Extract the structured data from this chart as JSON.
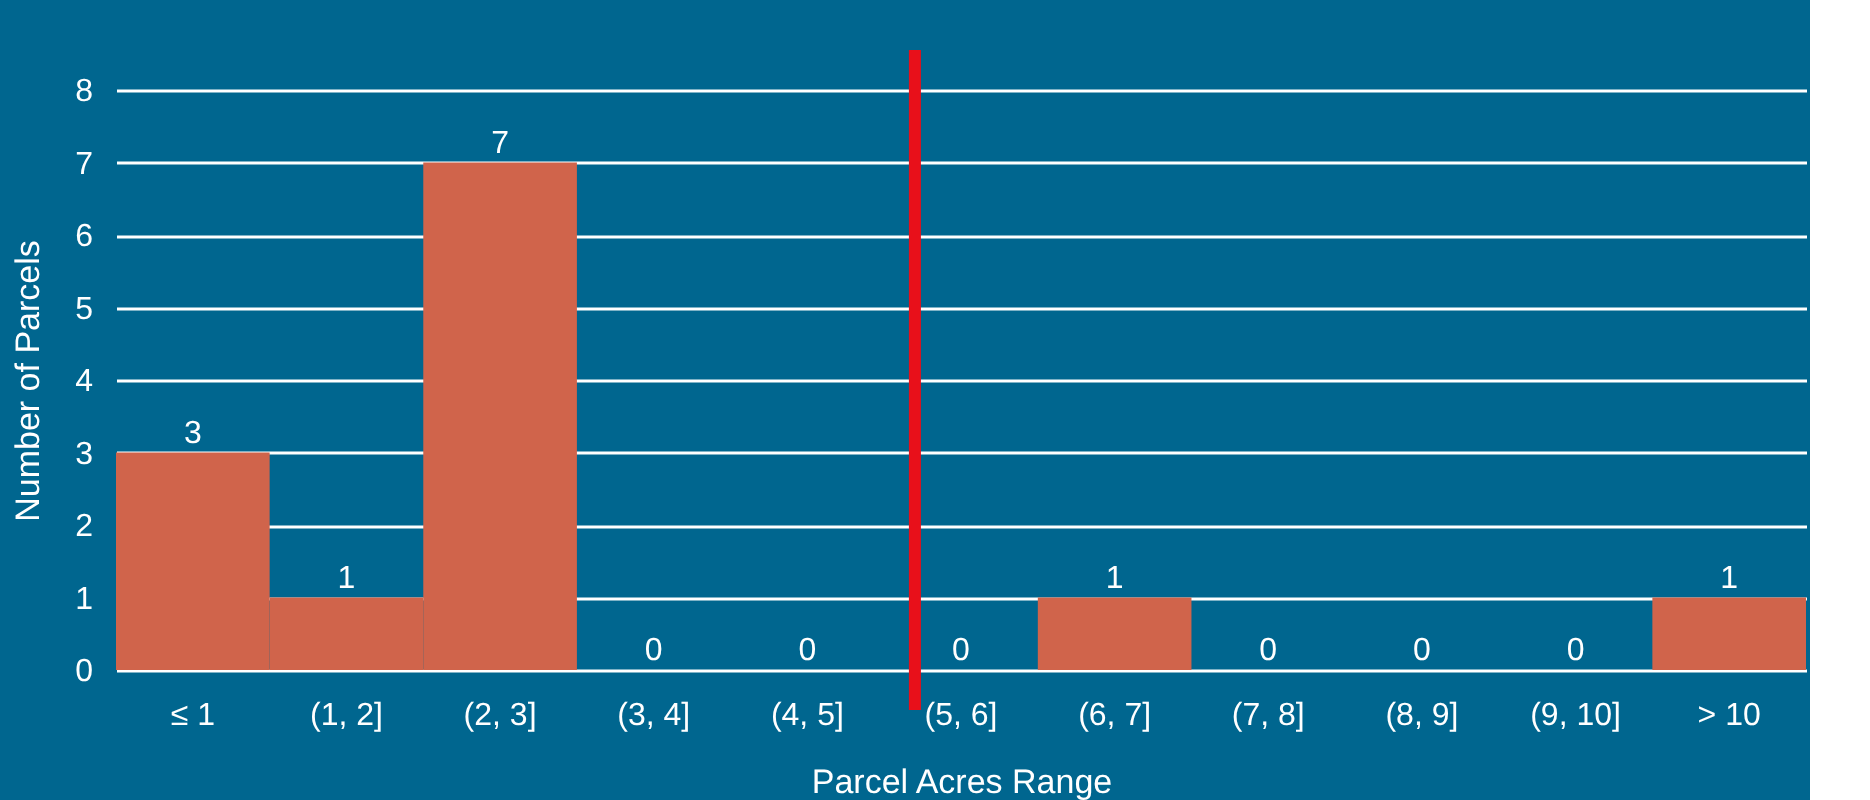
{
  "chart_data": {
    "type": "bar",
    "xlabel": "Parcel Acres Range",
    "ylabel": "Number of Parcels",
    "categories": [
      "≤ 1",
      "(1, 2]",
      "(2, 3]",
      "(3, 4]",
      "(4, 5]",
      "(5, 6]",
      "(6, 7]",
      "(7, 8]",
      "(8, 9]",
      "(9, 10]",
      "> 10"
    ],
    "values": [
      3,
      1,
      7,
      0,
      0,
      0,
      1,
      0,
      0,
      0,
      1
    ],
    "color": "#d0644b",
    "ylim": [
      0,
      8
    ],
    "yticks": [
      0,
      1,
      2,
      3,
      4,
      5,
      6,
      7,
      8
    ],
    "grid": "y",
    "data_labels": true,
    "ref_lines": [
      {
        "axis": "x",
        "value": "(5, 6]",
        "color": "#e8101a"
      }
    ]
  }
}
